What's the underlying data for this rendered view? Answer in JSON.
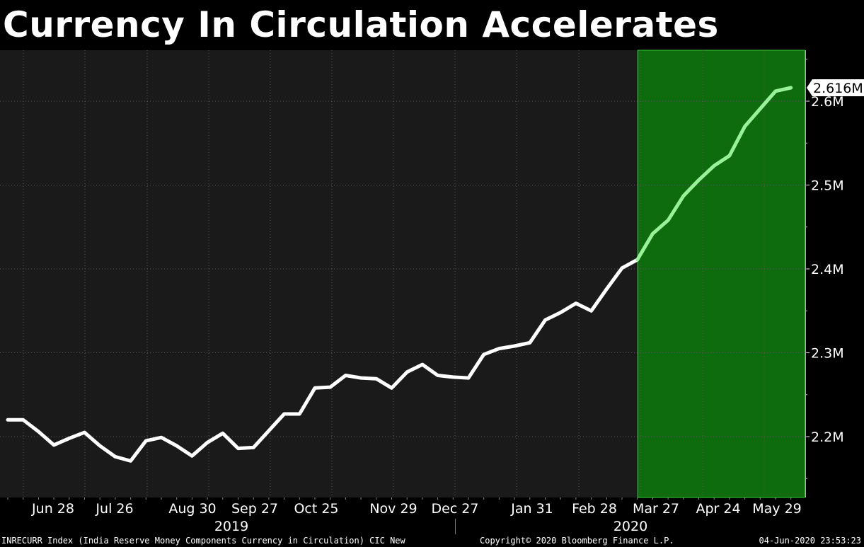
{
  "header": {
    "title": "Currency In Circulation Accelerates"
  },
  "footer": {
    "source": "INRECURR Index (India Reserve Money Components Currency in Circulation) CIC New",
    "copyright": "Copyright© 2020 Bloomberg Finance L.P.",
    "timestamp": "04-Jun-2020 23:53:23"
  },
  "colors": {
    "background": "#000000",
    "plot_background": "#1a1a1a",
    "line": "#ffffff",
    "highlight_fill": "#0e6b0e",
    "highlight_border": "#33cc33",
    "highlight_line": "#99f299"
  },
  "chart_data": {
    "type": "line",
    "title": "Currency In Circulation Accelerates",
    "xlabel": "",
    "ylabel": "",
    "ylim": [
      2.12,
      2.66
    ],
    "y_unit": "M",
    "grid": true,
    "y_ticks": [
      {
        "value": 2.2,
        "label": "2.2M"
      },
      {
        "value": 2.3,
        "label": "2.3M"
      },
      {
        "value": 2.4,
        "label": "2.4M"
      },
      {
        "value": 2.5,
        "label": "2.5M"
      },
      {
        "value": 2.6,
        "label": "2.6M"
      }
    ],
    "x_tick_labels": [
      "Jun 28",
      "Jul 26",
      "Aug 30",
      "Sep 27",
      "Oct 25",
      "Nov 29",
      "Dec 27",
      "Jan 31",
      "Feb 28",
      "Mar 27",
      "Apr 24",
      "May 29"
    ],
    "year_labels": [
      "2019",
      "2020"
    ],
    "last_value_label": "2.616M",
    "highlight_region": {
      "from_index": 41,
      "to_index": 51
    },
    "series": [
      {
        "values": [
          2.22,
          2.22,
          2.206,
          2.19,
          2.198,
          2.205,
          2.189,
          2.176,
          2.171,
          2.195,
          2.199,
          2.189,
          2.177,
          2.193,
          2.204,
          2.186,
          2.187,
          2.207,
          2.227,
          2.227,
          2.258,
          2.259,
          2.273,
          2.27,
          2.269,
          2.258,
          2.277,
          2.286,
          2.273,
          2.271,
          2.27,
          2.298,
          2.305,
          2.308,
          2.312,
          2.339,
          2.348,
          2.359,
          2.35,
          2.376,
          2.401,
          2.411,
          2.442,
          2.458,
          2.487,
          2.506,
          2.523,
          2.535,
          2.57,
          2.591,
          2.612,
          2.616
        ]
      }
    ]
  }
}
